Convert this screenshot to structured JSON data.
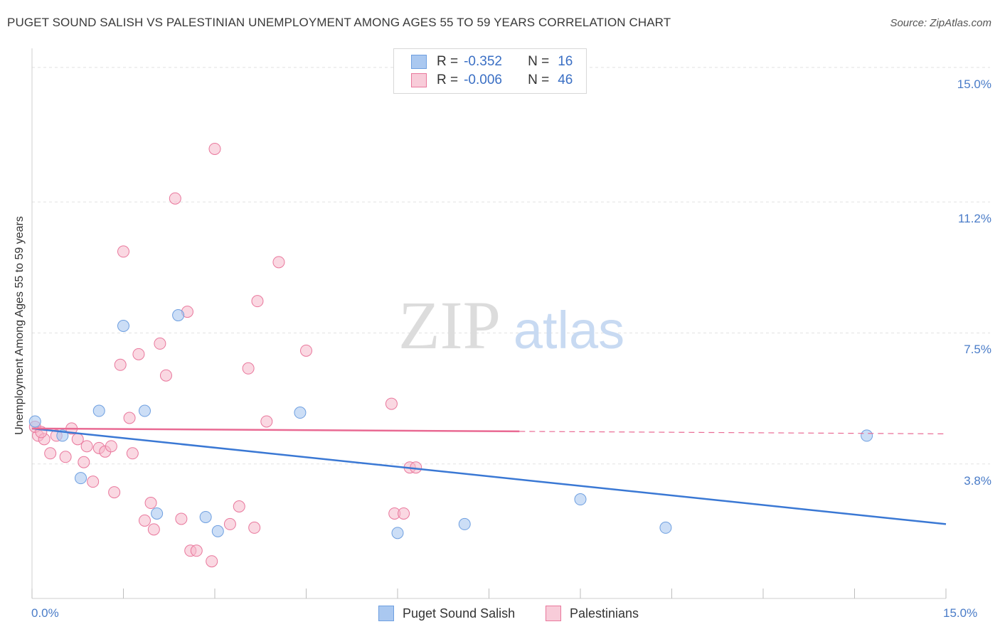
{
  "header": {
    "title": "PUGET SOUND SALISH VS PALESTINIAN UNEMPLOYMENT AMONG AGES 55 TO 59 YEARS CORRELATION CHART",
    "source": "Source: ZipAtlas.com"
  },
  "watermark": {
    "zip": "ZIP",
    "atlas": "atlas"
  },
  "legend": {
    "rows": [
      {
        "r_label": "R =",
        "r_value": "-0.352",
        "n_label": "N =",
        "n_value": "16",
        "color": "#aac8f0"
      },
      {
        "r_label": "R =",
        "r_value": "-0.006",
        "n_label": "N =",
        "n_value": "46",
        "color": "#f5b8cb"
      }
    ]
  },
  "bottom_legend": {
    "items": [
      {
        "label": "Puget Sound Salish",
        "color": "#aac8f0"
      },
      {
        "label": "Palestinians",
        "color": "#f5b8cb"
      }
    ]
  },
  "chart_data": {
    "type": "scatter",
    "title": "PUGET SOUND SALISH VS PALESTINIAN UNEMPLOYMENT AMONG AGES 55 TO 59 YEARS CORRELATION CHART",
    "xlabel": "",
    "ylabel": "Unemployment Among Ages 55 to 59 years",
    "xlim": [
      0,
      15
    ],
    "ylim": [
      0,
      15.4
    ],
    "x_tick_labels": [
      "0.0%",
      "15.0%"
    ],
    "y_ticks": [
      3.8,
      7.5,
      11.2,
      15.0
    ],
    "y_tick_labels": [
      "3.8%",
      "7.5%",
      "11.2%",
      "15.0%"
    ],
    "grid": true,
    "legend_position": "top-center",
    "series": [
      {
        "name": "Puget Sound Salish",
        "color": "#6e9fe0",
        "fill": "#aac8f0",
        "points": [
          [
            0.05,
            5.0
          ],
          [
            0.5,
            4.6
          ],
          [
            0.8,
            3.4
          ],
          [
            1.1,
            5.3
          ],
          [
            1.5,
            7.7
          ],
          [
            1.85,
            5.3
          ],
          [
            2.05,
            2.4
          ],
          [
            2.4,
            8.0
          ],
          [
            2.85,
            2.3
          ],
          [
            3.05,
            1.9
          ],
          [
            4.4,
            5.25
          ],
          [
            6.0,
            1.85
          ],
          [
            7.1,
            2.1
          ],
          [
            9.0,
            2.8
          ],
          [
            10.4,
            2.0
          ],
          [
            13.7,
            4.6
          ]
        ],
        "trend": {
          "x": [
            0,
            15
          ],
          "y": [
            4.8,
            2.1
          ],
          "style": "solid"
        }
      },
      {
        "name": "Palestinians",
        "color": "#e9779c",
        "fill": "#f5b8cb",
        "points": [
          [
            0.1,
            4.6
          ],
          [
            0.2,
            4.5
          ],
          [
            0.3,
            4.1
          ],
          [
            0.4,
            4.6
          ],
          [
            0.55,
            4.0
          ],
          [
            0.65,
            4.8
          ],
          [
            0.75,
            4.5
          ],
          [
            0.85,
            3.85
          ],
          [
            0.9,
            4.3
          ],
          [
            1.0,
            3.3
          ],
          [
            1.1,
            4.25
          ],
          [
            1.2,
            4.15
          ],
          [
            1.3,
            4.3
          ],
          [
            1.35,
            3.0
          ],
          [
            1.45,
            6.6
          ],
          [
            1.5,
            9.8
          ],
          [
            1.6,
            5.1
          ],
          [
            1.65,
            4.1
          ],
          [
            1.75,
            6.9
          ],
          [
            1.85,
            2.2
          ],
          [
            1.95,
            2.7
          ],
          [
            2.0,
            1.95
          ],
          [
            2.1,
            7.2
          ],
          [
            2.2,
            6.3
          ],
          [
            2.35,
            11.3
          ],
          [
            2.45,
            2.25
          ],
          [
            2.55,
            8.1
          ],
          [
            2.6,
            1.35
          ],
          [
            2.7,
            1.35
          ],
          [
            2.95,
            1.05
          ],
          [
            3.0,
            12.7
          ],
          [
            3.25,
            2.1
          ],
          [
            3.4,
            2.6
          ],
          [
            3.55,
            6.5
          ],
          [
            3.65,
            2.0
          ],
          [
            3.7,
            8.4
          ],
          [
            3.85,
            5.0
          ],
          [
            4.05,
            9.5
          ],
          [
            4.5,
            7.0
          ],
          [
            5.9,
            5.5
          ],
          [
            5.95,
            2.4
          ],
          [
            6.1,
            2.4
          ],
          [
            6.2,
            3.7
          ],
          [
            6.3,
            3.7
          ],
          [
            0.05,
            4.85
          ],
          [
            0.15,
            4.7
          ]
        ],
        "trend_solid": {
          "x": [
            0,
            8.0
          ],
          "y": [
            4.8,
            4.72
          ]
        },
        "trend_dashed": {
          "x": [
            8.0,
            15
          ],
          "y": [
            4.72,
            4.65
          ]
        }
      }
    ]
  }
}
